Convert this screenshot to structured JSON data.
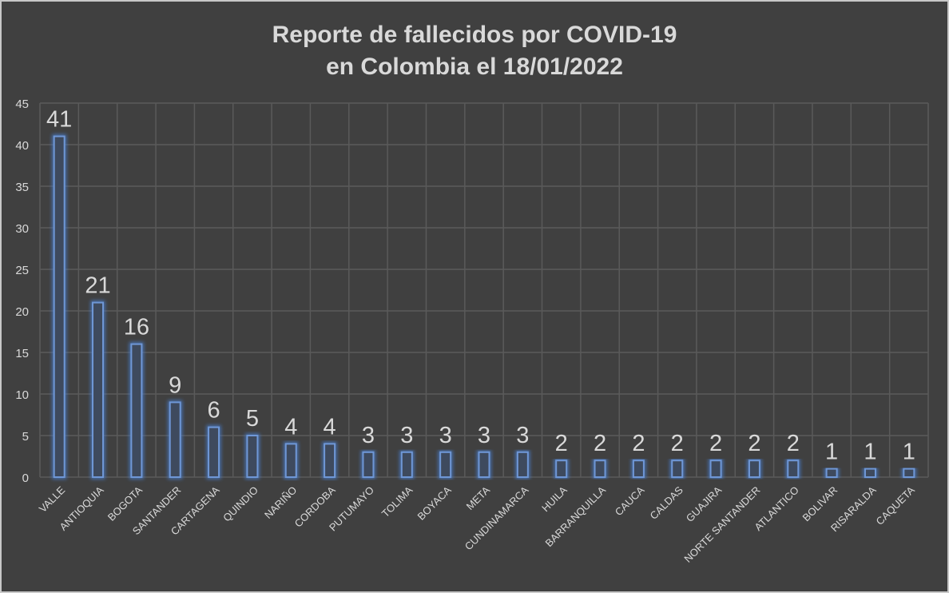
{
  "chart_data": {
    "type": "bar",
    "title": [
      "Reporte de fallecidos por COVID-19",
      "en Colombia el 18/01/2022"
    ],
    "xlabel": "",
    "ylabel": "",
    "ylim": [
      0,
      45
    ],
    "yticks": [
      0,
      5,
      10,
      15,
      20,
      25,
      30,
      35,
      40,
      45
    ],
    "grid": true,
    "categories": [
      "VALLE",
      "ANTIOQUIA",
      "BOGOTA",
      "SANTANDER",
      "CARTAGENA",
      "QUINDIO",
      "NARIÑO",
      "CORDOBA",
      "PUTUMAYO",
      "TOLIMA",
      "BOYACA",
      "META",
      "CUNDINAMARCA",
      "HUILA",
      "BARRANQUILLA",
      "CAUCA",
      "CALDAS",
      "GUAJIRA",
      "NORTE SANTANDER",
      "ATLANTICO",
      "BOLIVAR",
      "RISARALDA",
      "CAQUETA"
    ],
    "values": [
      41,
      21,
      16,
      9,
      6,
      5,
      4,
      4,
      3,
      3,
      3,
      3,
      3,
      2,
      2,
      2,
      2,
      2,
      2,
      2,
      1,
      1,
      1
    ],
    "colors": {
      "background": "#404040",
      "bar_stroke": "#6f97d6",
      "bar_fill": "#3e4a5e",
      "grid": "#5a5a5a",
      "text": "#d9d9d9"
    }
  }
}
